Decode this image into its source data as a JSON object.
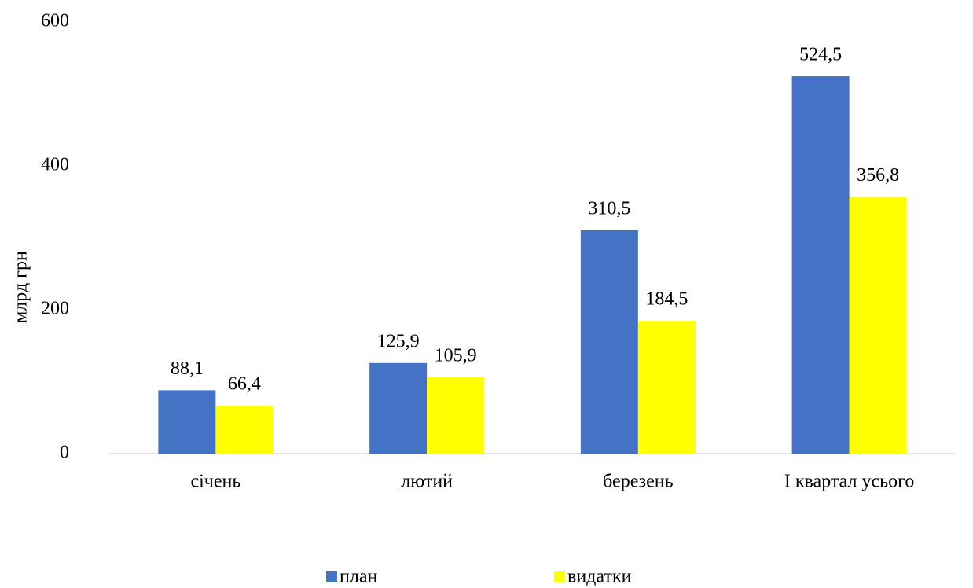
{
  "chart_data": {
    "type": "bar",
    "y_label": "млрд грн",
    "categories": [
      "січень",
      "лютий",
      "березень",
      "I квартал усього"
    ],
    "series": [
      {
        "name": "план",
        "color": "#4472c4",
        "values": [
          88.1,
          125.9,
          310.5,
          524.5
        ],
        "value_labels": [
          "88,1",
          "125,9",
          "310,5",
          "524,5"
        ]
      },
      {
        "name": "видатки",
        "color": "#ffff00",
        "values": [
          66.4,
          105.9,
          184.5,
          356.8
        ],
        "value_labels": [
          "66,4",
          "105,9",
          "184,5",
          "356,8"
        ]
      }
    ],
    "ylim": [
      0,
      600
    ],
    "yticks": [
      0,
      200,
      400,
      600
    ],
    "grid": false,
    "legend": "bottom"
  }
}
